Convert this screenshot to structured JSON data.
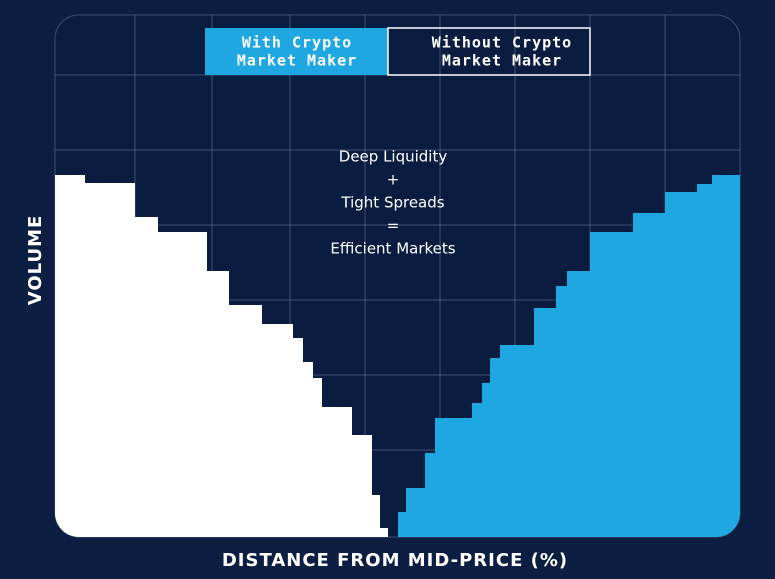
{
  "legend": [
    {
      "lines": [
        "With Crypto",
        "Market Maker"
      ]
    },
    {
      "lines": [
        "Without Crypto",
        "Market Maker"
      ]
    }
  ],
  "annotation": [
    "Deep Liquidity",
    "+",
    "Tight Spreads",
    "=",
    "Efficient Markets"
  ],
  "y_axis_label": "VOLUME",
  "x_axis_label": "DISTANCE FROM MID-PRICE (%)"
}
